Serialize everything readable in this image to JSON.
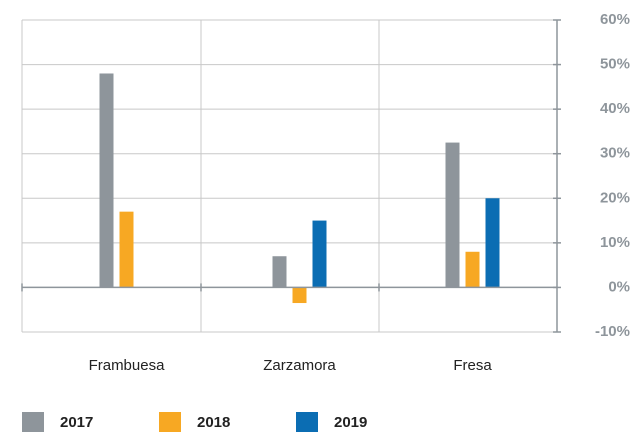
{
  "chart_data": {
    "type": "bar",
    "categories": [
      "Frambuesa",
      "Zarzamora",
      "Fresa"
    ],
    "series": [
      {
        "name": "2017",
        "color": "#8e959b",
        "values": [
          48,
          7,
          32.5
        ]
      },
      {
        "name": "2018",
        "color": "#f7a823",
        "values": [
          17,
          -3.5,
          8
        ]
      },
      {
        "name": "2019",
        "color": "#0b6db3",
        "values": [
          null,
          15,
          20
        ]
      }
    ],
    "ylim": [
      -10,
      60
    ],
    "yticks": [
      {
        "value": -10,
        "label": "-10%"
      },
      {
        "value": 0,
        "label": "0%"
      },
      {
        "value": 10,
        "label": "10%"
      },
      {
        "value": 20,
        "label": "20%"
      },
      {
        "value": 30,
        "label": "30%"
      },
      {
        "value": 40,
        "label": "40%"
      },
      {
        "value": 50,
        "label": "50%"
      },
      {
        "value": 60,
        "label": "60%"
      }
    ],
    "grid": true,
    "legend": "bottom"
  }
}
